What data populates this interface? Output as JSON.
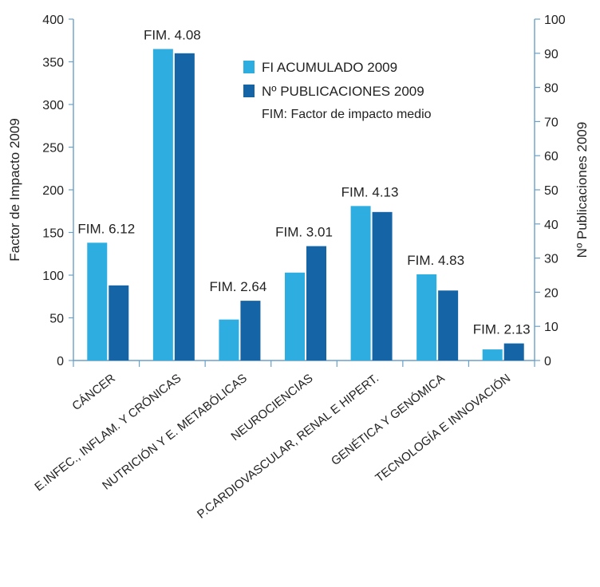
{
  "chart_data": {
    "type": "bar",
    "categories": [
      "CÁNCER",
      "E.INFEC., INFLAM. Y CRÓNICAS",
      "NUTRICIÓN Y E. METABÓLICAS",
      "NEUROCIENCIAS",
      "P.CARDIOVASCULAR, RENAL E HIPERT.",
      "GENÉTICA Y GENÓMICA",
      "TECNOLOGÍA E INNOVACIÓN"
    ],
    "series": [
      {
        "name": "FI ACUMULADO 2009",
        "axis": "left",
        "color": "#2eaee0",
        "values": [
          138,
          365,
          48,
          103,
          181,
          101,
          13
        ]
      },
      {
        "name": "Nº PUBLICACIONES 2009",
        "axis": "right",
        "color": "#1565a6",
        "values": [
          22,
          90,
          17.5,
          33.5,
          43.5,
          20.5,
          5
        ]
      }
    ],
    "annotations": [
      "FIM. 6.12",
      "FIM. 4.08",
      "FIM. 2.64",
      "FIM. 3.01",
      "FIM. 4.13",
      "FIM. 4.83",
      "FIM. 2.13"
    ],
    "legend_note": "FIM: Factor de impacto medio",
    "legend_position": "top-right",
    "ylabel_left": "Factor de Impacto 2009",
    "ylabel_right": "Nº Publicaciones 2009",
    "ylim_left": [
      0,
      400
    ],
    "yticks_left": [
      0,
      50,
      100,
      150,
      200,
      250,
      300,
      350,
      400
    ],
    "ylim_right": [
      0,
      100
    ],
    "yticks_right": [
      0,
      10,
      20,
      30,
      40,
      50,
      60,
      70,
      80,
      90,
      100
    ],
    "grid": false
  }
}
